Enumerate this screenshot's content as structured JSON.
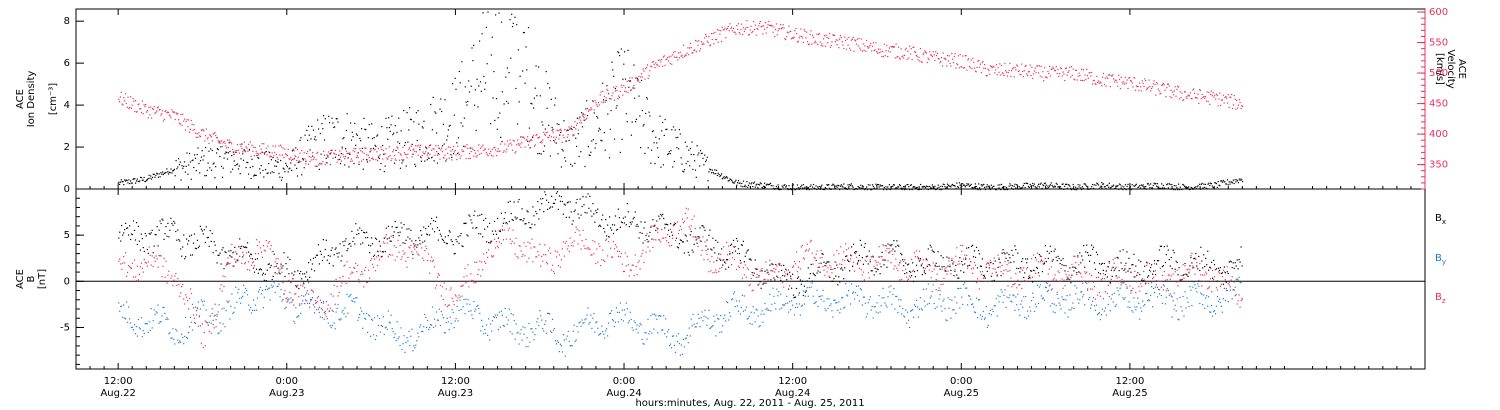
{
  "chart_data": [
    {
      "type": "scatter",
      "panel": "top",
      "ylabel_lines": [
        "ACE",
        "Ion Density"
      ],
      "yunit": "[cm⁻³]",
      "ylim": [
        0,
        8.2
      ],
      "yticks": [
        "0",
        "2",
        "4",
        "6",
        "8"
      ],
      "ylabel_right_lines": [
        "ACE",
        "Velocity"
      ],
      "yunit_right": "[km/s]",
      "ylim_right": [
        310,
        605
      ],
      "yticks_right": [
        "350",
        "400",
        "450",
        "500",
        "550",
        "600"
      ],
      "series": [
        {
          "color": "#000000",
          "axis": "left",
          "x": [
            0,
            2,
            4,
            6,
            8,
            10,
            12,
            14,
            16,
            18,
            20,
            22,
            24,
            26,
            28,
            30,
            32,
            34,
            36,
            38,
            40,
            42,
            44,
            46,
            48,
            50,
            52,
            54,
            56,
            58,
            60,
            62,
            64,
            66,
            68,
            70,
            72,
            74,
            76,
            78,
            80
          ],
          "y": [
            0.3,
            0.5,
            1.0,
            1.3,
            1.5,
            1.2,
            1.0,
            2.2,
            2.5,
            2.0,
            2.3,
            2.8,
            3.5,
            5.5,
            6.5,
            4.0,
            2.0,
            3.0,
            4.5,
            2.5,
            1.8,
            1.0,
            0.3,
            0.2,
            0.1,
            0.1,
            0.15,
            0.1,
            0.1,
            0.1,
            0.2,
            0.1,
            0.15,
            0.2,
            0.1,
            0.2,
            0.1,
            0.2,
            0.1,
            0.2,
            0.5
          ]
        },
        {
          "color": "#e8305c",
          "axis": "right",
          "x": [
            0,
            2,
            4,
            6,
            8,
            10,
            12,
            14,
            16,
            18,
            20,
            22,
            24,
            26,
            28,
            30,
            32,
            34,
            36,
            38,
            40,
            42,
            44,
            46,
            48,
            50,
            52,
            54,
            56,
            58,
            60,
            62,
            64,
            66,
            68,
            70,
            72,
            74,
            76,
            78,
            80
          ],
          "y": [
            460,
            440,
            430,
            400,
            380,
            375,
            370,
            360,
            365,
            368,
            370,
            372,
            370,
            375,
            380,
            395,
            400,
            455,
            475,
            510,
            535,
            555,
            575,
            575,
            565,
            555,
            550,
            540,
            535,
            525,
            520,
            505,
            505,
            500,
            500,
            490,
            485,
            475,
            465,
            460,
            450
          ]
        }
      ]
    },
    {
      "type": "scatter",
      "panel": "bottom",
      "ylabel_lines": [
        "ACE",
        "B"
      ],
      "yunit": "[nT]",
      "ylim": [
        -9.5,
        10
      ],
      "yticks": [
        "-5",
        "0",
        "5"
      ],
      "series": [
        {
          "name": "Bx",
          "color": "#000000",
          "x": [
            0,
            2,
            4,
            6,
            8,
            10,
            12,
            14,
            16,
            18,
            20,
            22,
            24,
            26,
            28,
            30,
            32,
            34,
            36,
            38,
            40,
            42,
            44,
            46,
            48,
            50,
            52,
            54,
            56,
            58,
            60,
            62,
            64,
            66,
            68,
            70,
            72,
            74,
            76,
            78,
            80
          ],
          "y": [
            5,
            5,
            5,
            4,
            3,
            2,
            1,
            2,
            4,
            4.5,
            5,
            5,
            5,
            6,
            7,
            8,
            8.5,
            7,
            6.5,
            6,
            5,
            4,
            3,
            1,
            0,
            1,
            2,
            3,
            2,
            2,
            2,
            2,
            2,
            2,
            2,
            2,
            1.5,
            2,
            2,
            1.5,
            2
          ]
        },
        {
          "name": "By",
          "color": "#1f7cd0",
          "x": [
            0,
            2,
            4,
            6,
            8,
            10,
            12,
            14,
            16,
            18,
            20,
            22,
            24,
            26,
            28,
            30,
            32,
            34,
            36,
            38,
            40,
            42,
            44,
            46,
            48,
            50,
            52,
            54,
            56,
            58,
            60,
            62,
            64,
            66,
            68,
            70,
            72,
            74,
            76,
            78,
            80
          ],
          "y": [
            -4,
            -4,
            -5,
            -4,
            -3,
            -1,
            -2,
            -3,
            -3,
            -4,
            -6,
            -5,
            -3,
            -4,
            -5,
            -5,
            -6,
            -4,
            -4,
            -5,
            -6,
            -4,
            -3,
            -3,
            -2,
            -2,
            -2,
            -2,
            -3,
            -2,
            -2,
            -3,
            -2,
            -2,
            -2,
            -2,
            -2,
            -2,
            -2,
            -2,
            -1
          ]
        },
        {
          "name": "Bz",
          "color": "#e8305c",
          "x": [
            0,
            2,
            4,
            6,
            8,
            10,
            12,
            14,
            16,
            18,
            20,
            22,
            24,
            26,
            28,
            30,
            32,
            34,
            36,
            38,
            40,
            42,
            44,
            46,
            48,
            50,
            52,
            54,
            56,
            58,
            60,
            62,
            64,
            66,
            68,
            70,
            72,
            74,
            76,
            78,
            80
          ],
          "y": [
            2,
            2,
            1,
            -6,
            2,
            4,
            0,
            -3,
            0,
            2,
            4,
            2,
            -2,
            3,
            5,
            2,
            4,
            4,
            2,
            4,
            7,
            3,
            2,
            0,
            2,
            3,
            2,
            2,
            2,
            1,
            2,
            1,
            1,
            1,
            1,
            0,
            1,
            0,
            1,
            1,
            -2
          ]
        }
      ],
      "legend": [
        {
          "label": "B",
          "sub": "x",
          "color": "#000000"
        },
        {
          "label": "B",
          "sub": "y",
          "color": "#1f7cd0"
        },
        {
          "label": "B",
          "sub": "z",
          "color": "#e8305c"
        }
      ],
      "zero_line": true
    }
  ],
  "xaxis": {
    "xlim": [
      -3,
      93
    ],
    "ticks": [
      {
        "t": 0,
        "time": "12:00",
        "date": "Aug.22"
      },
      {
        "t": 12,
        "time": "0:00",
        "date": "Aug.23"
      },
      {
        "t": 24,
        "time": "12:00",
        "date": "Aug.23"
      },
      {
        "t": 36,
        "time": "0:00",
        "date": "Aug.24"
      },
      {
        "t": 48,
        "time": "12:00",
        "date": "Aug.24"
      },
      {
        "t": 60,
        "time": "0:00",
        "date": "Aug.25"
      },
      {
        "t": 72,
        "time": "12:00",
        "date": "Aug.25"
      }
    ],
    "xlabel": "hours:minutes, Aug. 22, 2011 - Aug. 25, 2011"
  }
}
